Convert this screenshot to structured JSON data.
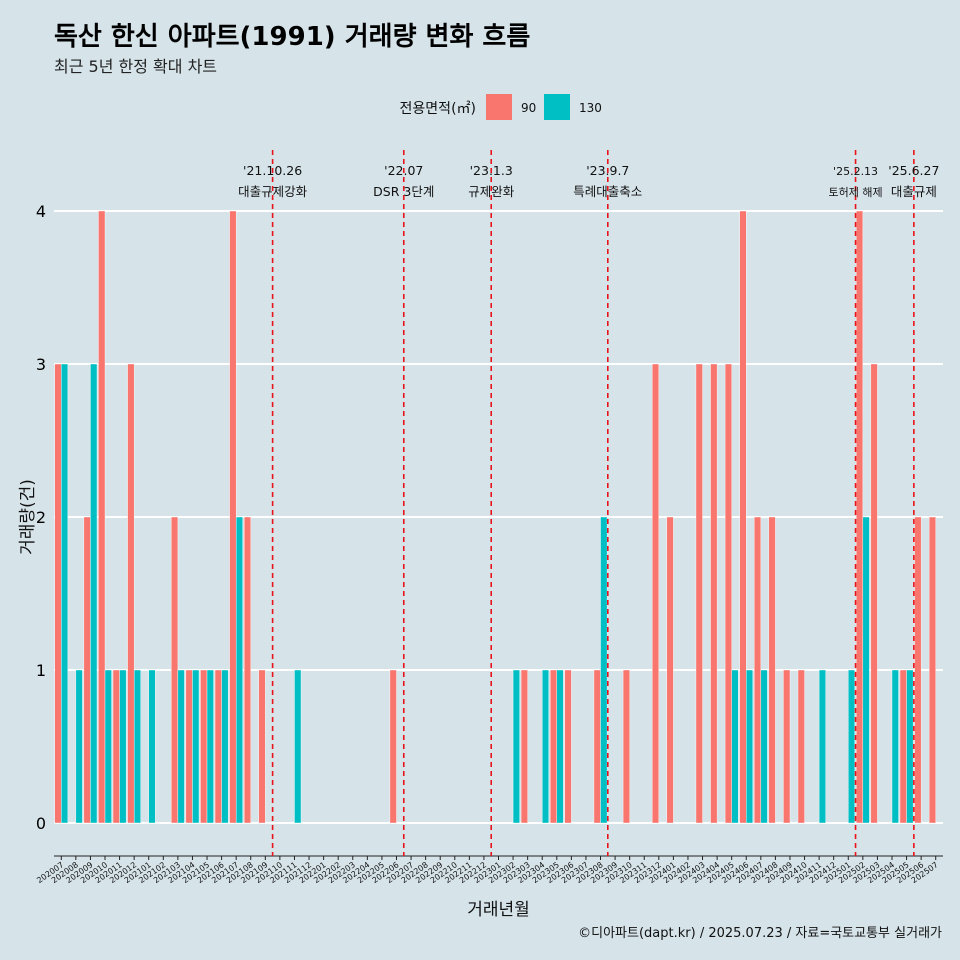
{
  "title": "독산 한신 아파트(1991) 거래량 변화 흐름",
  "subtitle": "최근 5년 한정 확대 차트",
  "caption": "©디아파트(dapt.kr) / 2025.07.23 / 자료=국토교통부 실거래가",
  "colors": {
    "background": "#d6e4ea",
    "series_90": "#f8766d",
    "series_130": "#00bfc4",
    "vline": "#e8141a",
    "grid": "#ffffff"
  },
  "chart_data": {
    "type": "bar",
    "xlabel": "거래년월",
    "ylabel": "거래량(건)",
    "ylim": [
      0,
      4
    ],
    "y_ticks": [
      "0",
      "1",
      "2",
      "3",
      "4"
    ],
    "grid": true,
    "legend": {
      "title": "전용면적(㎡)",
      "position": "top"
    },
    "categories": [
      "202007",
      "202008",
      "202009",
      "202010",
      "202011",
      "202012",
      "202101",
      "202102",
      "202103",
      "202104",
      "202105",
      "202106",
      "202107",
      "202108",
      "202109",
      "202110",
      "202111",
      "202112",
      "202201",
      "202202",
      "202203",
      "202204",
      "202205",
      "202206",
      "202207",
      "202208",
      "202209",
      "202210",
      "202211",
      "202212",
      "202301",
      "202302",
      "202303",
      "202304",
      "202305",
      "202306",
      "202307",
      "202308",
      "202309",
      "202310",
      "202311",
      "202312",
      "202401",
      "202402",
      "202403",
      "202404",
      "202405",
      "202406",
      "202407",
      "202408",
      "202409",
      "202410",
      "202411",
      "202412",
      "202501",
      "202502",
      "202503",
      "202504",
      "202505",
      "202506",
      "202507"
    ],
    "series": [
      {
        "name": "90",
        "values": [
          3,
          0,
          2,
          4,
          1,
          3,
          0,
          0,
          2,
          1,
          1,
          1,
          4,
          2,
          1,
          0,
          0,
          0,
          0,
          0,
          0,
          0,
          0,
          1,
          0,
          0,
          0,
          0,
          0,
          0,
          0,
          0,
          1,
          0,
          1,
          1,
          0,
          1,
          0,
          1,
          0,
          3,
          2,
          0,
          3,
          3,
          3,
          4,
          2,
          2,
          1,
          1,
          0,
          0,
          0,
          4,
          3,
          0,
          1,
          2,
          2
        ]
      },
      {
        "name": "130",
        "values": [
          3,
          1,
          3,
          1,
          1,
          1,
          1,
          0,
          1,
          1,
          1,
          1,
          2,
          0,
          0,
          0,
          1,
          0,
          0,
          0,
          0,
          0,
          0,
          0,
          0,
          0,
          0,
          0,
          0,
          0,
          0,
          1,
          0,
          1,
          1,
          0,
          0,
          2,
          0,
          0,
          0,
          0,
          0,
          0,
          0,
          0,
          1,
          1,
          1,
          0,
          0,
          0,
          1,
          0,
          1,
          2,
          0,
          1,
          1,
          0,
          0
        ]
      }
    ],
    "events": [
      {
        "date": "'21.10.26",
        "label": "대출규제강화",
        "after_index": 14.5
      },
      {
        "date": "'22.07",
        "label": "DSR 3단계",
        "after_index": 23.5
      },
      {
        "date": "'23.1.3",
        "label": "규제완화",
        "after_index": 29.5
      },
      {
        "date": "'23.9.7",
        "label": "특례대출축소",
        "after_index": 37.5
      },
      {
        "date": "'25.2.13",
        "label": "토허제 해제",
        "after_index": 54.5
      },
      {
        "date": "'25.6.27",
        "label": "대출규제",
        "after_index": 58.5
      }
    ]
  }
}
